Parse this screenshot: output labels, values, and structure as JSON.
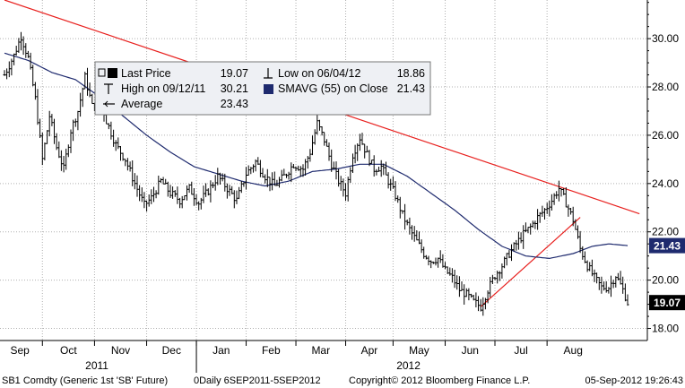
{
  "chart_data": {
    "type": "line",
    "title": "",
    "ticker": "SB1 Comdty (Generic 1st 'SB' Future)",
    "range_label": "0Daily 6SEP2011-5SEP2012",
    "copyright": "Copyright© 2012 Bloomberg Finance L.P.",
    "timestamp": "05-Sep-2012 19:26:43",
    "months": [
      "Sep",
      "Oct",
      "Nov",
      "Dec",
      "Jan",
      "Feb",
      "Mar",
      "Apr",
      "May",
      "Jun",
      "Jul",
      "Aug"
    ],
    "years": [
      "2011",
      "2012"
    ],
    "yticks": [
      "18.00",
      "20.00",
      "22.00",
      "24.00",
      "26.00",
      "28.00",
      "30.00"
    ],
    "ylim": [
      17.5,
      31.6
    ],
    "xlim": [
      0,
      252
    ],
    "last_price_tag": "19.07",
    "smavg_tag": "21.43",
    "legend": {
      "last_price_label": "Last Price",
      "last_price_value": "19.07",
      "high_label": "High on 09/12/11",
      "high_value": "30.21",
      "average_label": "Average",
      "average_value": "23.43",
      "low_label": "Low on 06/04/12",
      "low_value": "18.86",
      "smavg_label": "SMAVG (55) on Close",
      "smavg_value": "21.43"
    },
    "price_keypoints": [
      [
        0,
        28.5
      ],
      [
        4,
        29.3
      ],
      [
        7,
        30.1
      ],
      [
        10,
        29.2
      ],
      [
        13,
        27.5
      ],
      [
        16,
        25.0
      ],
      [
        19,
        26.8
      ],
      [
        22,
        25.5
      ],
      [
        25,
        24.6
      ],
      [
        28,
        26.2
      ],
      [
        31,
        27.0
      ],
      [
        34,
        28.4
      ],
      [
        37,
        27.2
      ],
      [
        40,
        27.6
      ],
      [
        43,
        26.6
      ],
      [
        47,
        25.6
      ],
      [
        51,
        25.0
      ],
      [
        55,
        24.0
      ],
      [
        59,
        23.1
      ],
      [
        62,
        23.4
      ],
      [
        66,
        24.1
      ],
      [
        70,
        23.6
      ],
      [
        74,
        23.3
      ],
      [
        78,
        23.8
      ],
      [
        82,
        23.2
      ],
      [
        86,
        23.7
      ],
      [
        90,
        24.3
      ],
      [
        94,
        23.8
      ],
      [
        98,
        23.3
      ],
      [
        102,
        24.4
      ],
      [
        106,
        24.9
      ],
      [
        110,
        24.3
      ],
      [
        114,
        23.9
      ],
      [
        118,
        24.3
      ],
      [
        122,
        24.8
      ],
      [
        126,
        24.6
      ],
      [
        129,
        25.3
      ],
      [
        132,
        26.5
      ],
      [
        135,
        25.8
      ],
      [
        138,
        24.8
      ],
      [
        141,
        24.1
      ],
      [
        144,
        23.6
      ],
      [
        147,
        25.2
      ],
      [
        150,
        25.9
      ],
      [
        153,
        25.2
      ],
      [
        156,
        24.6
      ],
      [
        159,
        24.7
      ],
      [
        162,
        24.1
      ],
      [
        165,
        23.5
      ],
      [
        168,
        22.7
      ],
      [
        171,
        22.1
      ],
      [
        174,
        21.6
      ],
      [
        177,
        21.1
      ],
      [
        180,
        20.8
      ],
      [
        183,
        20.9
      ],
      [
        186,
        20.4
      ],
      [
        189,
        20.1
      ],
      [
        192,
        19.6
      ],
      [
        195,
        19.4
      ],
      [
        198,
        19.1
      ],
      [
        201,
        18.9
      ],
      [
        204,
        19.6
      ],
      [
        207,
        20.2
      ],
      [
        210,
        20.6
      ],
      [
        213,
        21.1
      ],
      [
        216,
        21.5
      ],
      [
        219,
        21.9
      ],
      [
        222,
        22.2
      ],
      [
        225,
        22.6
      ],
      [
        228,
        22.9
      ],
      [
        231,
        23.3
      ],
      [
        234,
        23.8
      ],
      [
        237,
        23.2
      ],
      [
        240,
        22.5
      ],
      [
        243,
        21.3
      ],
      [
        246,
        20.6
      ],
      [
        249,
        20.1
      ],
      [
        252,
        19.7
      ],
      [
        255,
        19.7
      ],
      [
        258,
        20.2
      ],
      [
        261,
        19.6
      ],
      [
        263,
        19.07
      ]
    ],
    "smavg_keypoints": [
      [
        0,
        29.4
      ],
      [
        10,
        29.1
      ],
      [
        20,
        28.6
      ],
      [
        30,
        28.3
      ],
      [
        40,
        27.6
      ],
      [
        50,
        26.8
      ],
      [
        60,
        26.0
      ],
      [
        70,
        25.3
      ],
      [
        80,
        24.7
      ],
      [
        90,
        24.4
      ],
      [
        100,
        24.1
      ],
      [
        110,
        23.9
      ],
      [
        120,
        24.1
      ],
      [
        130,
        24.5
      ],
      [
        140,
        24.6
      ],
      [
        150,
        24.8
      ],
      [
        160,
        24.8
      ],
      [
        170,
        24.3
      ],
      [
        180,
        23.6
      ],
      [
        190,
        22.9
      ],
      [
        200,
        22.1
      ],
      [
        210,
        21.4
      ],
      [
        220,
        21.0
      ],
      [
        230,
        20.9
      ],
      [
        240,
        21.1
      ],
      [
        248,
        21.4
      ],
      [
        255,
        21.5
      ],
      [
        263,
        21.43
      ]
    ],
    "trendlines": [
      {
        "color": "#e8201e",
        "from": [
          0,
          31.6
        ],
        "to": [
          268,
          22.75
        ]
      },
      {
        "color": "#e8201e",
        "from": [
          201,
          18.9
        ],
        "to": [
          243,
          22.6
        ]
      }
    ],
    "colors": {
      "price": "#000000",
      "smavg": "#1e2a6e",
      "trend": "#e8201e",
      "legend_bg": "#eef0f4",
      "last_tag_bg": "#000000",
      "smavg_tag_bg": "#1e2a6e"
    }
  }
}
